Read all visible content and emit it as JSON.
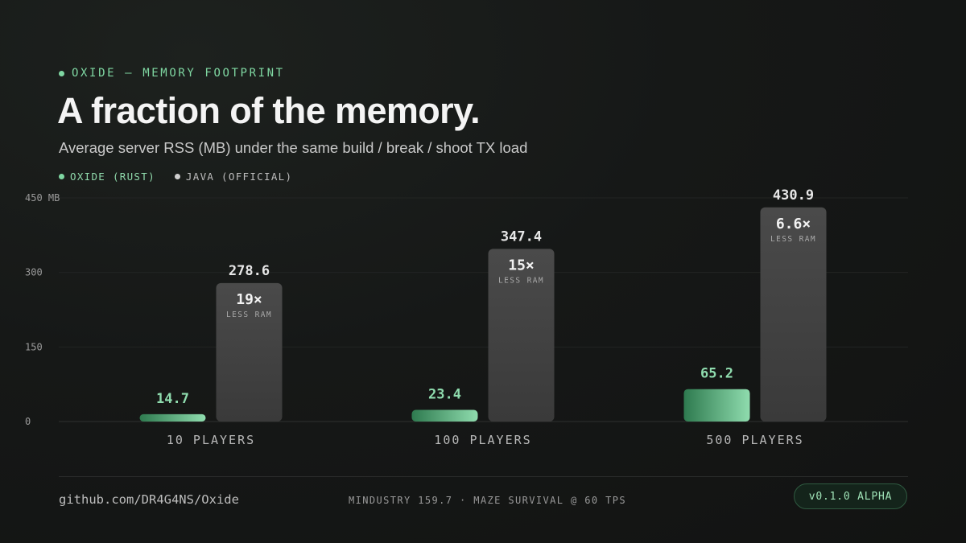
{
  "header": {
    "eyebrow": "OXIDE — MEMORY FOOTPRINT",
    "title": "A fraction of the memory.",
    "subtitle": "Average server RSS (MB) under the same build / break / shoot TX load"
  },
  "legend": [
    {
      "label": "OXIDE (RUST)",
      "color": "#7fd7a2"
    },
    {
      "label": "JAVA (OFFICIAL)",
      "color": "#cfcfcf"
    }
  ],
  "chart_data": {
    "type": "bar",
    "categories": [
      "10 PLAYERS",
      "100 PLAYERS",
      "500 PLAYERS"
    ],
    "series": [
      {
        "name": "OXIDE (RUST)",
        "values": [
          14.7,
          23.4,
          65.2
        ],
        "color": "#7fd7a2"
      },
      {
        "name": "JAVA (OFFICIAL)",
        "values": [
          278.6,
          347.4,
          430.9
        ],
        "color": "#4a4a4a"
      }
    ],
    "value_labels": {
      "oxide": [
        "14.7",
        "23.4",
        "65.2"
      ],
      "java": [
        "278.6",
        "347.4",
        "430.9"
      ]
    },
    "ratios": [
      "19×",
      "15×",
      "6.6×"
    ],
    "ratio_caption": "LESS RAM",
    "yticks": [
      "0",
      "150",
      "300",
      "450 MB"
    ],
    "ytick_values": [
      0,
      150,
      300,
      450
    ],
    "ylim": [
      0,
      450
    ],
    "grid": true,
    "legend_position": "top-left"
  },
  "footer": {
    "repo": "github.com/DR4G4NS/Oxide",
    "meta": "MINDUSTRY 159.7 · MAZE SURVIVAL @ 60 TPS",
    "version": "v0.1.0 ALPHA"
  }
}
